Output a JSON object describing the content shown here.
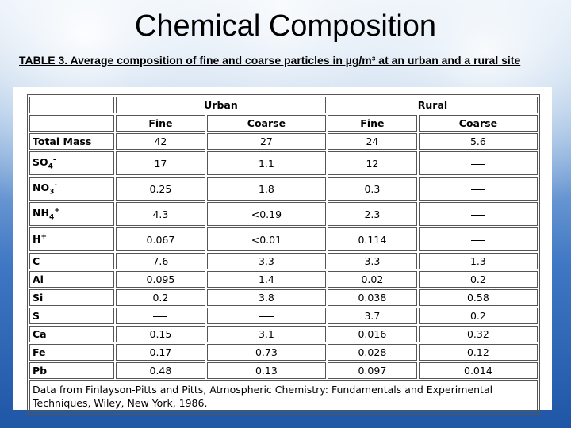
{
  "title": "Chemical Composition",
  "caption": "TABLE 3. Average composition of fine and coarse particles in µg/m³ at an urban and a rural site",
  "table": {
    "groups": [
      "Urban",
      "Rural"
    ],
    "columns": [
      "Fine",
      "Coarse",
      "Fine",
      "Coarse"
    ],
    "rows": [
      {
        "label": "Total Mass",
        "values": [
          "42",
          "27",
          "24",
          "5.6"
        ]
      },
      {
        "label": "SO",
        "sub": "4",
        "sup": "-",
        "values": [
          "17",
          "1.1",
          "12",
          "__"
        ]
      },
      {
        "label": "NO",
        "sub": "3",
        "sup": "-",
        "values": [
          "0.25",
          "1.8",
          "0.3",
          "__"
        ]
      },
      {
        "label": "NH",
        "sub": "4",
        "sup": "+",
        "values": [
          "4.3",
          "<0.19",
          "2.3",
          "__"
        ]
      },
      {
        "label": "H",
        "sup": "+",
        "values": [
          "0.067",
          "<0.01",
          "0.114",
          "__"
        ]
      },
      {
        "label": "C",
        "values": [
          "7.6",
          "3.3",
          "3.3",
          "1.3"
        ]
      },
      {
        "label": "Al",
        "values": [
          "0.095",
          "1.4",
          "0.02",
          "0.2"
        ]
      },
      {
        "label": "Si",
        "values": [
          "0.2",
          "3.8",
          "0.038",
          "0.58"
        ]
      },
      {
        "label": "S",
        "values": [
          "__",
          "__",
          "3.7",
          "0.2"
        ]
      },
      {
        "label": "Ca",
        "values": [
          "0.15",
          "3.1",
          "0.016",
          "0.32"
        ]
      },
      {
        "label": "Fe",
        "values": [
          "0.17",
          "0.73",
          "0.028",
          "0.12"
        ]
      },
      {
        "label": "Pb",
        "values": [
          "0.48",
          "0.13",
          "0.097",
          "0.014"
        ]
      }
    ],
    "note": "Data from Finlayson-Pitts and Pitts, Atmospheric Chemistry: Fundamentals and Experimental Techniques, Wiley, New York, 1986."
  }
}
